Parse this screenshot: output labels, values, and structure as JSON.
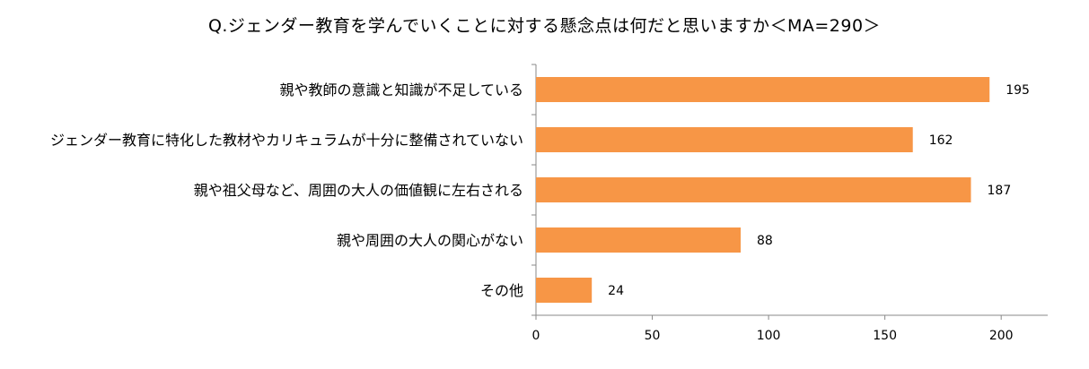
{
  "chart_data": {
    "type": "bar",
    "orientation": "horizontal",
    "title": "Q.ジェンダー教育を学んでいくことに対する懸念点は何だと思いますか＜MA=290＞",
    "categories": [
      "親や教師の意識と知識が不足している",
      "ジェンダー教育に特化した教材やカリキュラムが十分に整備されていない",
      "親や祖父母など、周囲の大人の価値観に左右される",
      "親や周囲の大人の関心がない",
      "その他"
    ],
    "values": [
      195,
      162,
      187,
      88,
      24
    ],
    "xlim": [
      0,
      220
    ],
    "xticks": [
      "0",
      "50",
      "100",
      "150",
      "200"
    ],
    "grid": false,
    "bar_color": "#F79646"
  }
}
